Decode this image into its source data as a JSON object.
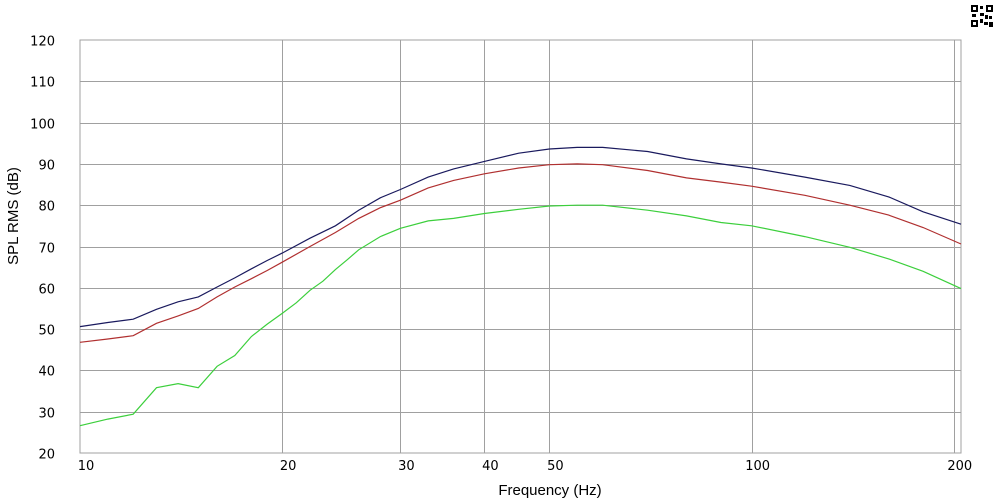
{
  "chart_data": {
    "type": "line",
    "xlabel": "Frequency (Hz)",
    "ylabel": "SPL RMS (dB)",
    "xscale": "log",
    "xlim": [
      10,
      205
    ],
    "ylim": [
      20,
      120
    ],
    "grid": true,
    "xticks": [
      10,
      20,
      30,
      40,
      50,
      100,
      200
    ],
    "yticks": [
      20,
      30,
      40,
      50,
      60,
      70,
      80,
      90,
      100,
      110,
      120
    ],
    "series": [
      {
        "color": "#1a1a5e",
        "x": [
          10,
          11,
          12,
          13,
          14,
          15,
          16,
          17,
          18,
          19,
          20,
          22,
          24,
          26,
          28,
          30,
          33,
          36,
          40,
          45,
          50,
          55,
          60,
          70,
          80,
          90,
          100,
          120,
          140,
          160,
          180,
          205
        ],
        "y": [
          50.6,
          51.6,
          52.4,
          54.8,
          56.6,
          57.8,
          60.2,
          62.4,
          64.6,
          66.6,
          68.4,
          72.0,
          75.0,
          78.8,
          81.8,
          83.8,
          86.8,
          88.8,
          90.6,
          92.6,
          93.6,
          94.0,
          94.0,
          93.0,
          91.2,
          90.0,
          89.0,
          86.8,
          84.8,
          82.0,
          78.4,
          75.4
        ]
      },
      {
        "color": "#b03030",
        "x": [
          10,
          11,
          12,
          13,
          14,
          15,
          16,
          17,
          18,
          19,
          20,
          22,
          24,
          26,
          28,
          30,
          33,
          36,
          40,
          45,
          50,
          55,
          60,
          70,
          80,
          90,
          100,
          120,
          140,
          160,
          180,
          205
        ],
        "y": [
          46.8,
          47.6,
          48.4,
          51.4,
          53.2,
          55.0,
          57.8,
          60.2,
          62.2,
          64.2,
          66.2,
          70.0,
          73.4,
          76.8,
          79.4,
          81.2,
          84.2,
          86.0,
          87.6,
          89.0,
          89.8,
          90.0,
          89.8,
          88.4,
          86.6,
          85.6,
          84.6,
          82.4,
          80.0,
          77.6,
          74.6,
          70.6
        ]
      },
      {
        "color": "#3ccf3c",
        "x": [
          10,
          11,
          12,
          13,
          14,
          15,
          16,
          17,
          18,
          19,
          20,
          21,
          22,
          23,
          24,
          25,
          26,
          28,
          30,
          33,
          36,
          40,
          45,
          50,
          55,
          60,
          70,
          80,
          90,
          100,
          120,
          140,
          160,
          180,
          205
        ],
        "y": [
          26.6,
          28.2,
          29.4,
          35.8,
          36.8,
          35.8,
          41.0,
          43.6,
          48.2,
          51.2,
          53.8,
          56.4,
          59.4,
          61.6,
          64.4,
          66.8,
          69.2,
          72.4,
          74.4,
          76.2,
          76.8,
          78.0,
          79.0,
          79.8,
          80.0,
          80.0,
          78.8,
          77.4,
          75.8,
          75.0,
          72.4,
          69.8,
          67.0,
          64.0,
          59.8
        ]
      }
    ]
  },
  "logo_icon": "qr-code-icon"
}
